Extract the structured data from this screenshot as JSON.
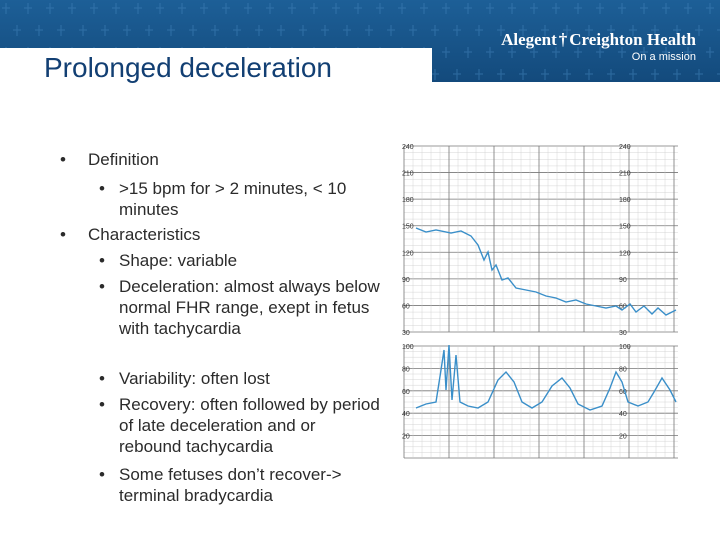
{
  "header": {
    "title": "Prolonged deceleration",
    "brand_left": "Alegent",
    "brand_cross": "†",
    "brand_right": "Creighton Health",
    "tagline": "On a mission"
  },
  "bullets": [
    {
      "level": 1,
      "text": "Definition"
    },
    {
      "level": 2,
      "text": ">15 bpm for > 2 minutes, < 10 minutes"
    },
    {
      "level": 1,
      "text": "Characteristics"
    },
    {
      "level": 2,
      "text": "Shape: variable"
    },
    {
      "level": 2,
      "text": "Deceleration: almost always below normal FHR range, exept in fetus with tachycardia"
    },
    {
      "level": 2,
      "text": "Variability: often lost"
    },
    {
      "level": 2,
      "text": "Recovery: often followed by period of late deceleration and or rebound tachycardia"
    },
    {
      "level": 2,
      "text": "Some fetuses don’t recover-> terminal bradycardia"
    }
  ],
  "chart": {
    "fhr_ticks": [
      "240",
      "210",
      "180",
      "150",
      "120",
      "90",
      "60",
      "30"
    ],
    "ua_ticks": [
      "100",
      "80",
      "60",
      "40",
      "20"
    ]
  }
}
